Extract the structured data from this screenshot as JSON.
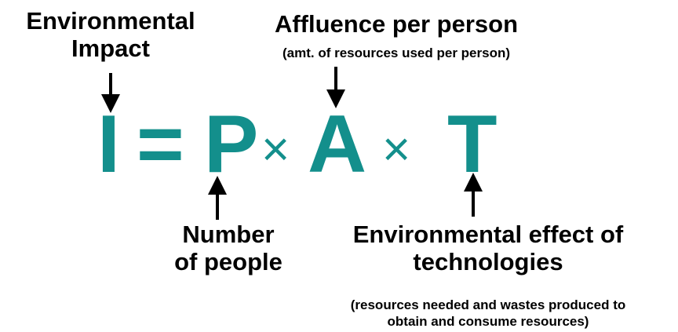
{
  "equation": {
    "impact_symbol": "I",
    "equals_symbol": "=",
    "population_symbol": "P",
    "times_symbol_1": "×",
    "affluence_symbol": "A",
    "times_symbol_2": "×",
    "technology_symbol": "T",
    "color": "#138f8c"
  },
  "labels": {
    "impact": {
      "line1": "Environmental",
      "line2": "Impact"
    },
    "affluence": {
      "title": "Affluence per person",
      "subtitle": "(amt. of resources used per person)"
    },
    "population": {
      "line1": "Number",
      "line2": "of people"
    },
    "technology": {
      "line1": "Environmental effect of",
      "line2": "technologies",
      "note_line1": "(resources needed and wastes produced to",
      "note_line2": "obtain and consume resources)"
    }
  }
}
